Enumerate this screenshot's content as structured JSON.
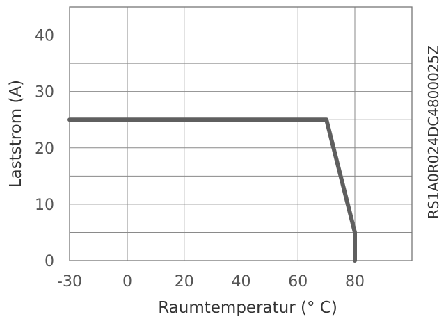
{
  "chart_data": {
    "type": "line",
    "title": "",
    "xlabel": "Raumtemperatur (° C)",
    "ylabel": "Laststrom (A)",
    "xlim": [
      -30,
      80
    ],
    "ylim": [
      0,
      45
    ],
    "x_ticks": [
      -30,
      0,
      20,
      40,
      60,
      80
    ],
    "y_ticks": [
      0,
      10,
      20,
      30,
      40
    ],
    "grid": true,
    "series": [
      {
        "x": [
          -30,
          70,
          80,
          80
        ],
        "values": [
          25,
          25,
          5,
          0
        ]
      }
    ],
    "line_color": "#5f5f5f",
    "side_label": "RS1A0R024DC4800025Z"
  }
}
